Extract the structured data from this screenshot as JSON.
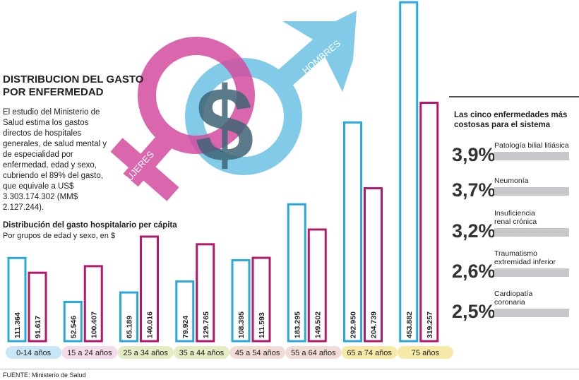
{
  "title": "DISTRIBUCION DEL GASTO POR ENFERMEDAD",
  "intro": "El estudio del Ministerio de Salud estima los gastos directos de hospitales generales, de salud mental y de especialidad por enfermedad, edad y sexo, cubriendo el 89% del gasto, que equivale a US$ 3.303.174.302 (MM$ 2.127.244).",
  "symbols": {
    "female_label": "MUJERES",
    "male_label": "HOMBRES",
    "currency": "$"
  },
  "chart_data": [
    {
      "type": "bar",
      "title": "Distribución del  gasto hospitalario per cápita",
      "subtitle": "Por grupos de edad y sexo, en $",
      "categories": [
        "0-14 años",
        "15 a 24 años",
        "25 a 34 años",
        "35 a 44 años",
        "45 a 54 años",
        "55 a 64 años",
        "65 a 74 años",
        "75 años"
      ],
      "series": [
        {
          "key": "hombres",
          "color": "#29a8df",
          "values": [
            111364,
            52546,
            65189,
            79924,
            108395,
            183295,
            292950,
            453882
          ],
          "labels": [
            "111.364",
            "52.546",
            "65.189",
            "79.924",
            "108.395",
            "183.295",
            "292.950",
            "453.882"
          ]
        },
        {
          "key": "mujeres",
          "color": "#b5176d",
          "values": [
            91617,
            100407,
            140016,
            129765,
            111593,
            149502,
            204739,
            319257
          ],
          "labels": [
            "91.617",
            "100.407",
            "140.016",
            "129.765",
            "111.593",
            "149.502",
            "204.739",
            "319.257"
          ]
        }
      ],
      "category_colors": [
        "#c9e6f5",
        "#f4dcea",
        "#e4ecc4",
        "#e4ecc4",
        "#f2dcd8",
        "#f2dcd8",
        "#f7eaa8",
        "#f7eaa8"
      ],
      "ylim": [
        0,
        455000
      ]
    },
    {
      "type": "bar",
      "title": "Las cinco enfermedades más costosas para el sistema",
      "categories": [
        "Patología bilial litiásica",
        "Neumonía",
        "Insuficiencia renal crónica",
        "Traumatismo extremidad inferior",
        "Cardiopatía coronaria"
      ],
      "values": [
        3.9,
        3.7,
        3.2,
        2.6,
        2.5
      ],
      "labels": [
        "3,9%",
        "3,7%",
        "3,2%",
        "2,6%",
        "2,5%"
      ],
      "bar_color": "#c8c8ca"
    }
  ],
  "source": "FUENTE: Ministerio de Salud"
}
